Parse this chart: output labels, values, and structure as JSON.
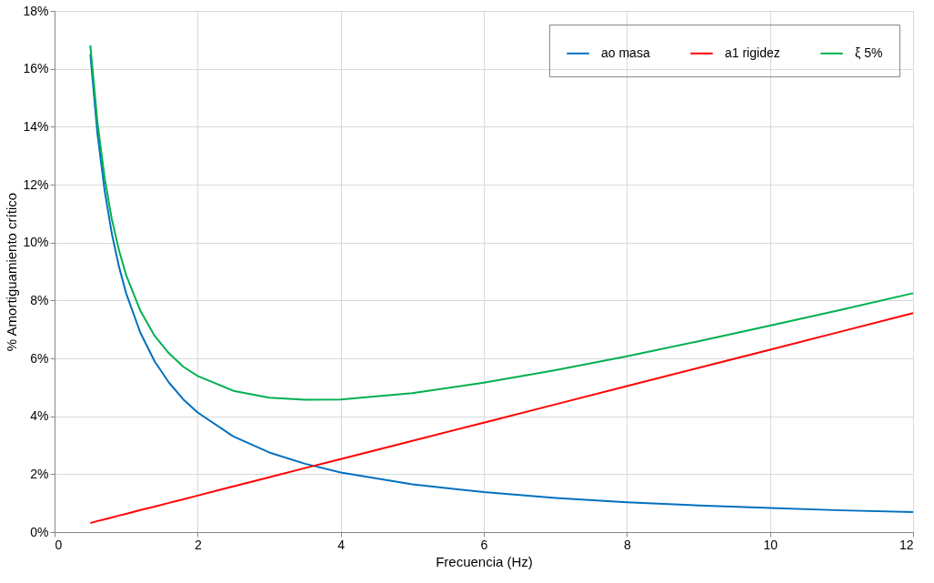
{
  "chart_data": {
    "type": "line",
    "xlabel": "Frecuencia (Hz)",
    "ylabel": "% Amortiguamiento crítico",
    "x": [
      0.5,
      0.6,
      0.7,
      0.8,
      0.9,
      1.0,
      1.2,
      1.4,
      1.6,
      1.8,
      2,
      2.5,
      3,
      3.5,
      4,
      5,
      6,
      7,
      8,
      9,
      10,
      11,
      12
    ],
    "series": [
      {
        "name": "ao masa",
        "color": "#0070c0",
        "values": [
          16.5,
          13.75,
          11.79,
          10.31,
          9.17,
          8.25,
          6.88,
          5.89,
          5.16,
          4.58,
          4.13,
          3.3,
          2.75,
          2.36,
          2.06,
          1.65,
          1.38,
          1.18,
          1.03,
          0.92,
          0.83,
          0.75,
          0.69
        ]
      },
      {
        "name": "a1 rigidez",
        "color": "#ff0000",
        "values": [
          0.31,
          0.38,
          0.44,
          0.5,
          0.57,
          0.63,
          0.76,
          0.88,
          1.01,
          1.13,
          1.26,
          1.58,
          1.89,
          2.21,
          2.52,
          3.15,
          3.78,
          4.41,
          5.04,
          5.67,
          6.3,
          6.93,
          7.56
        ]
      },
      {
        "name": "ξ 5%",
        "color": "#00b050",
        "values": [
          16.81,
          14.13,
          12.23,
          10.81,
          9.74,
          8.88,
          7.64,
          6.77,
          6.17,
          5.71,
          5.39,
          4.88,
          4.64,
          4.57,
          4.58,
          4.8,
          5.16,
          5.59,
          6.07,
          6.59,
          7.13,
          7.68,
          8.25
        ]
      }
    ],
    "xlim": [
      0,
      12
    ],
    "xticks": [
      0,
      2,
      4,
      6,
      8,
      10,
      12
    ],
    "ylim": [
      0,
      18
    ],
    "yticks": [
      {
        "value": 0,
        "label": "0%"
      },
      {
        "value": 2,
        "label": "2%"
      },
      {
        "value": 4,
        "label": "4%"
      },
      {
        "value": 6,
        "label": "6%"
      },
      {
        "value": 8,
        "label": "8%"
      },
      {
        "value": 10,
        "label": "10%"
      },
      {
        "value": 12,
        "label": "12%"
      },
      {
        "value": 14,
        "label": "14%"
      },
      {
        "value": 16,
        "label": "16%"
      },
      {
        "value": 18,
        "label": "18%"
      }
    ],
    "grid": true,
    "legend": "top right",
    "marker": "none",
    "line_style": "solid"
  }
}
